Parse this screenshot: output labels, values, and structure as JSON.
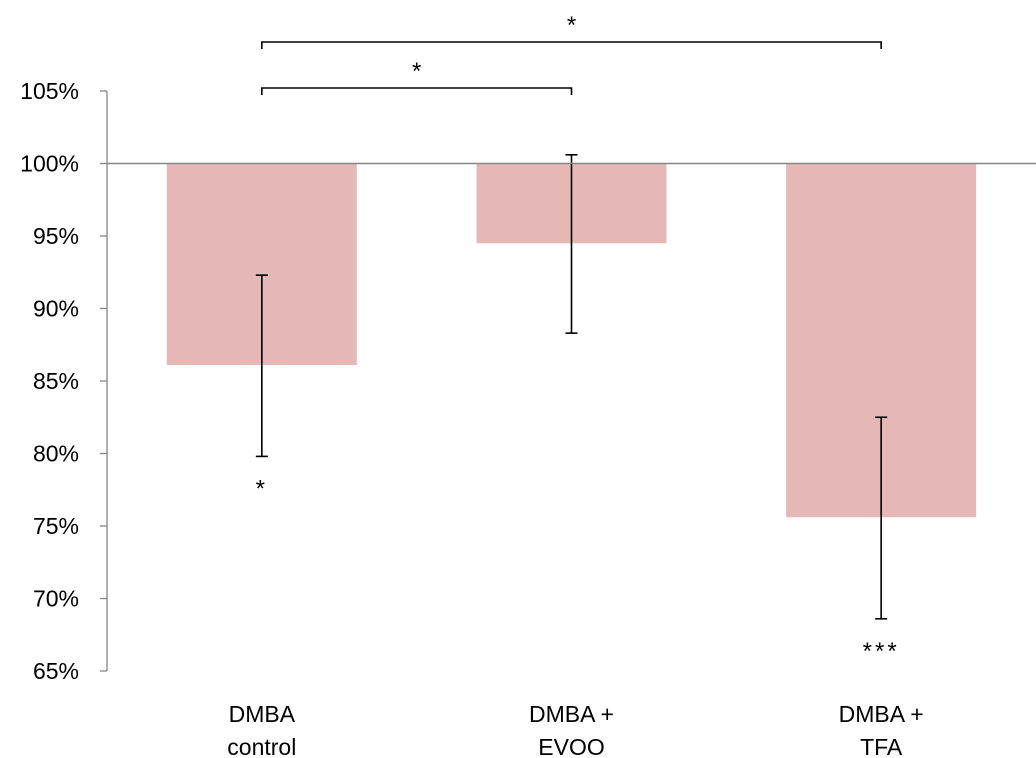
{
  "chart_data": {
    "type": "bar",
    "categories": [
      [
        "DMBA",
        "control"
      ],
      [
        "DMBA +",
        "EVOO"
      ],
      [
        "DMBA +",
        "TFA"
      ]
    ],
    "baseline": 100,
    "values": [
      86.1,
      94.5,
      75.6
    ],
    "error_low": [
      79.8,
      88.3,
      68.6
    ],
    "error_high": [
      92.3,
      100.6,
      82.5
    ],
    "bar_significance": [
      "*",
      "",
      "***"
    ],
    "comparisons": [
      {
        "from": 0,
        "to": 2,
        "label": "*"
      },
      {
        "from": 0,
        "to": 1,
        "label": "*"
      }
    ],
    "ylim": [
      65,
      105
    ],
    "yticks": [
      65,
      70,
      75,
      80,
      85,
      90,
      95,
      100,
      105
    ],
    "ytick_labels": [
      "65%",
      "70%",
      "75%",
      "80%",
      "85%",
      "90%",
      "95%",
      "100%",
      "105%"
    ],
    "title": "",
    "xlabel": "",
    "ylabel": "",
    "grid": false,
    "colors": {
      "bar": "#e5b8b7",
      "axis": "#868686",
      "error": "#000000",
      "text": "#000000"
    }
  }
}
